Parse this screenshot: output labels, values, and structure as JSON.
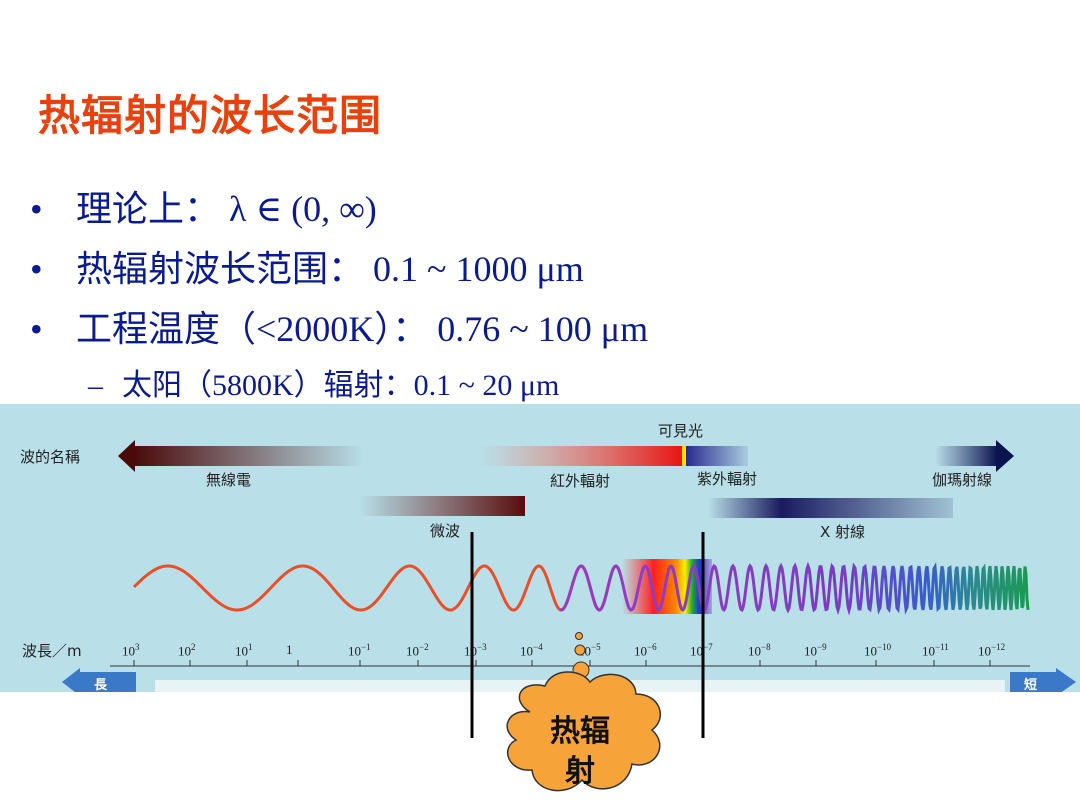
{
  "title": "热辐射的波长范围",
  "bullets": [
    {
      "text": "理论上：  λ ∈ (0, ∞)"
    },
    {
      "text": "热辐射波长范围：  0.1 ~ 1000 μm"
    },
    {
      "text": "工程温度（<2000K）：  0.76 ~ 100 μm"
    }
  ],
  "bullet_marker": "•",
  "sub_marker": "–",
  "sub_bullet": "太阳（5800K）辐射：0.1 ~ 20 μm",
  "spectrum": {
    "wave_name_label": "波的名稱",
    "visible_label": "可見光",
    "bands_row1": [
      "無線電",
      "紅外輻射",
      "紫外輻射",
      "伽瑪射線"
    ],
    "bands_row2": [
      "微波",
      "X 射線"
    ],
    "wavelength_label": "波長／m",
    "long_label": "長",
    "short_label": "短",
    "ticks": [
      {
        "base": "10",
        "exp": "3"
      },
      {
        "base": "10",
        "exp": "2"
      },
      {
        "base": "10",
        "exp": "1"
      },
      {
        "base": "1",
        "exp": ""
      },
      {
        "base": "10",
        "exp": "−1"
      },
      {
        "base": "10",
        "exp": "−2"
      },
      {
        "base": "10",
        "exp": "−3"
      },
      {
        "base": "10",
        "exp": "−4"
      },
      {
        "base": "10",
        "exp": "−5"
      },
      {
        "base": "10",
        "exp": "−6"
      },
      {
        "base": "10",
        "exp": "−7"
      },
      {
        "base": "10",
        "exp": "−8"
      },
      {
        "base": "10",
        "exp": "−9"
      },
      {
        "base": "10",
        "exp": "−10"
      },
      {
        "base": "10",
        "exp": "−11"
      },
      {
        "base": "10",
        "exp": "−12"
      }
    ]
  },
  "callout": {
    "line1": "热辐",
    "line2": "射"
  },
  "colors": {
    "title": "#e8410d",
    "text": "#0a1a8f",
    "cloud": "#f6a43a",
    "panel": "#b9dfe8"
  }
}
